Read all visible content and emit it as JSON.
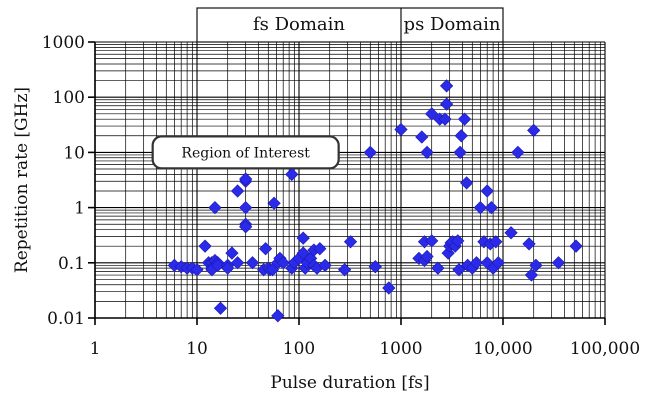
{
  "chart_data": {
    "type": "scatter",
    "title": "",
    "xlabel": "Pulse duration [fs]",
    "ylabel": "Repetition rate [GHz]",
    "x_scale": "log",
    "y_scale": "log",
    "xlim": [
      1,
      100000
    ],
    "ylim": [
      0.01,
      1000
    ],
    "x_ticks": [
      1,
      10,
      100,
      1000,
      10000,
      100000
    ],
    "x_tick_labels": [
      "1",
      "10",
      "100",
      "1000",
      "10,000",
      "100,000"
    ],
    "y_ticks": [
      0.01,
      0.1,
      1,
      10,
      100,
      1000
    ],
    "y_tick_labels": [
      "0.01",
      "0.1",
      "1",
      "10",
      "100",
      "1000"
    ],
    "grid": "major and minor",
    "marker": "diamond",
    "marker_color": "#2a2ae8",
    "regions": [
      {
        "label": "fs Domain",
        "x_range": [
          10,
          1000
        ]
      },
      {
        "label": "ps Domain",
        "x_range": [
          1000,
          10000
        ]
      }
    ],
    "annotations": [
      {
        "text": "Region of Interest",
        "x": 30,
        "y": 10
      }
    ],
    "series": [
      {
        "points": [
          [
            6,
            0.09
          ],
          [
            7,
            0.085
          ],
          [
            8,
            0.08
          ],
          [
            9,
            0.08
          ],
          [
            10,
            0.075
          ],
          [
            12,
            0.2
          ],
          [
            13,
            0.1
          ],
          [
            14,
            0.1
          ],
          [
            14,
            0.08
          ],
          [
            14,
            0.075
          ],
          [
            15,
            0.11
          ],
          [
            15,
            1.0
          ],
          [
            16,
            0.1
          ],
          [
            16,
            0.09
          ],
          [
            17,
            0.015
          ],
          [
            20,
            0.09
          ],
          [
            20,
            0.08
          ],
          [
            22,
            0.15
          ],
          [
            25,
            2.0
          ],
          [
            25,
            0.1
          ],
          [
            30,
            3.0
          ],
          [
            30,
            3.3
          ],
          [
            30,
            1.0
          ],
          [
            30,
            0.5
          ],
          [
            30,
            0.45
          ],
          [
            35,
            0.1
          ],
          [
            45,
            0.075
          ],
          [
            47,
            0.18
          ],
          [
            50,
            0.08
          ],
          [
            52,
            0.075
          ],
          [
            55,
            0.075
          ],
          [
            57,
            1.2
          ],
          [
            62,
            0.011
          ],
          [
            62,
            0.1
          ],
          [
            65,
            0.12
          ],
          [
            70,
            0.1
          ],
          [
            85,
            4.0
          ],
          [
            85,
            0.08
          ],
          [
            90,
            0.1
          ],
          [
            100,
            0.12
          ],
          [
            110,
            0.15
          ],
          [
            110,
            0.28
          ],
          [
            115,
            0.08
          ],
          [
            120,
            0.1
          ],
          [
            130,
            0.12
          ],
          [
            140,
            0.17
          ],
          [
            140,
            0.09
          ],
          [
            150,
            0.08
          ],
          [
            160,
            0.18
          ],
          [
            180,
            0.09
          ],
          [
            280,
            0.075
          ],
          [
            320,
            0.24
          ],
          [
            500,
            10
          ],
          [
            560,
            0.085
          ],
          [
            760,
            0.035
          ],
          [
            1000,
            26
          ],
          [
            1500,
            0.12
          ],
          [
            1600,
            19
          ],
          [
            1700,
            0.24
          ],
          [
            1700,
            0.11
          ],
          [
            1800,
            10
          ],
          [
            1800,
            0.13
          ],
          [
            2000,
            50
          ],
          [
            2000,
            0.25
          ],
          [
            2300,
            0.08
          ],
          [
            2400,
            40
          ],
          [
            2700,
            40
          ],
          [
            2800,
            160
          ],
          [
            2800,
            75
          ],
          [
            2900,
            0.15
          ],
          [
            3000,
            0.2
          ],
          [
            3100,
            0.23
          ],
          [
            3200,
            0.24
          ],
          [
            3400,
            0.2
          ],
          [
            3600,
            0.25
          ],
          [
            3700,
            0.075
          ],
          [
            3800,
            10
          ],
          [
            3900,
            20
          ],
          [
            4200,
            40
          ],
          [
            4400,
            2.8
          ],
          [
            4500,
            0.09
          ],
          [
            5000,
            0.08
          ],
          [
            5500,
            0.1
          ],
          [
            6000,
            1.0
          ],
          [
            6500,
            0.24
          ],
          [
            7000,
            2.0
          ],
          [
            7000,
            0.1
          ],
          [
            7500,
            0.22
          ],
          [
            7700,
            1.0
          ],
          [
            8000,
            0.08
          ],
          [
            8500,
            0.24
          ],
          [
            9000,
            0.1
          ],
          [
            12000,
            0.35
          ],
          [
            14000,
            10
          ],
          [
            18000,
            0.22
          ],
          [
            19000,
            0.06
          ],
          [
            20000,
            25
          ],
          [
            21000,
            0.09
          ],
          [
            35000,
            0.1
          ],
          [
            52000,
            0.2
          ]
        ]
      }
    ]
  }
}
